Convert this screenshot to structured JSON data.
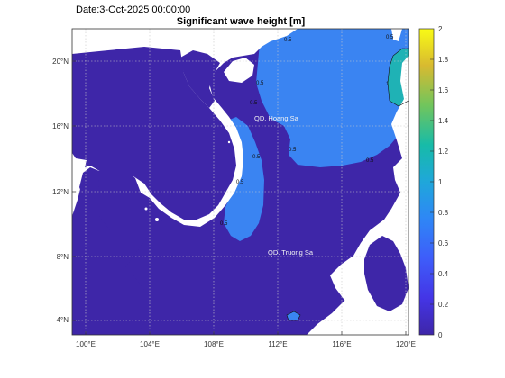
{
  "date_label": "Date:3-Oct-2025 00:00:00",
  "title": "Significant wave height [m]",
  "colors": {
    "sea_low": "#3e26a8",
    "sea_mid": "#3a84f2",
    "sea_high": "#1fb2b5",
    "land": "#ffffff",
    "grid": "#bdbdbd"
  },
  "x_ticks": [
    "100°E",
    "104°E",
    "108°E",
    "112°E",
    "116°E",
    "120°E"
  ],
  "y_ticks": [
    "4°N",
    "8°N",
    "12°N",
    "16°N",
    "20°N"
  ],
  "colorbar": {
    "ticks": [
      "0",
      "0.2",
      "0.4",
      "0.6",
      "0.8",
      "1",
      "1.2",
      "1.4",
      "1.6",
      "1.8",
      "2"
    ],
    "min": 0,
    "max": 2
  },
  "place_labels": {
    "paracel": "QD. Hoang Sa",
    "spratly": "QD. Truong Sa"
  },
  "contour_labels": [
    "0.5",
    "0.5",
    "1",
    "0.5",
    "0.5",
    "0.5",
    "0.5",
    "0.5",
    "0.5",
    "0.5"
  ]
}
